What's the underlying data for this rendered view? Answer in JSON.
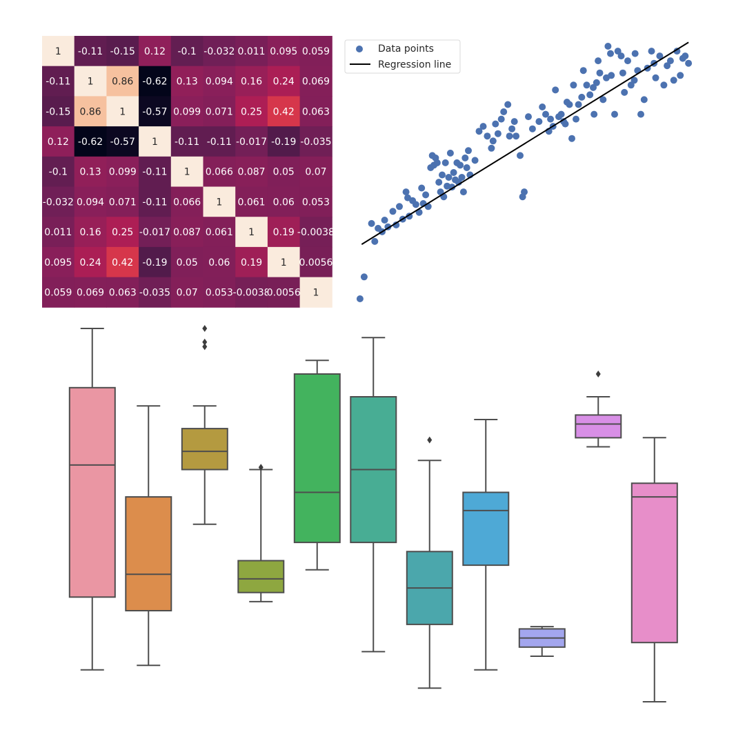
{
  "chart_data": [
    {
      "type": "heatmap",
      "title": "",
      "row_labels": [],
      "col_labels": [],
      "colormap": "rocket",
      "value_range": [
        -0.62,
        1
      ],
      "values": [
        [
          1,
          -0.11,
          -0.15,
          0.12,
          -0.1,
          -0.032,
          0.011,
          0.095,
          0.059
        ],
        [
          -0.11,
          1,
          0.86,
          -0.62,
          0.13,
          0.094,
          0.16,
          0.24,
          0.069
        ],
        [
          -0.15,
          0.86,
          1,
          -0.57,
          0.099,
          0.071,
          0.25,
          0.42,
          0.063
        ],
        [
          0.12,
          -0.62,
          -0.57,
          1,
          -0.11,
          -0.11,
          -0.017,
          -0.19,
          -0.035
        ],
        [
          -0.1,
          0.13,
          0.099,
          -0.11,
          1,
          0.066,
          0.087,
          0.05,
          0.07
        ],
        [
          -0.032,
          0.094,
          0.071,
          -0.11,
          0.066,
          1,
          0.061,
          0.06,
          0.053
        ],
        [
          0.011,
          0.16,
          0.25,
          -0.017,
          0.087,
          0.061,
          1,
          0.19,
          -0.0038
        ],
        [
          0.095,
          0.24,
          0.42,
          -0.19,
          0.05,
          0.06,
          0.19,
          1,
          0.0056
        ],
        [
          0.059,
          0.069,
          0.063,
          -0.035,
          0.07,
          0.053,
          -0.0038,
          0.0056,
          1
        ]
      ]
    },
    {
      "type": "scatter",
      "title": "",
      "xlabel": "",
      "ylabel": "",
      "axes_visible": false,
      "grid": false,
      "xlim": [
        -2.1,
        2.1
      ],
      "ylim": [
        -2.6,
        2.8
      ],
      "legend_position": "top-left",
      "point_color": "#4c72b0",
      "line_color": "#000000",
      "series": [
        {
          "name": "Data points",
          "kind": "points",
          "points": [
            [
              -2.0,
              -2.5
            ],
            [
              -1.95,
              -2.05
            ],
            [
              -1.86,
              -0.95
            ],
            [
              -1.82,
              -1.32
            ],
            [
              -1.78,
              -1.05
            ],
            [
              -1.73,
              -1.12
            ],
            [
              -1.7,
              -0.88
            ],
            [
              -1.66,
              -1.02
            ],
            [
              -1.6,
              -0.7
            ],
            [
              -1.56,
              -0.98
            ],
            [
              -1.52,
              -0.6
            ],
            [
              -1.48,
              -0.86
            ],
            [
              -1.44,
              -0.3
            ],
            [
              -1.42,
              -0.42
            ],
            [
              -1.4,
              -0.8
            ],
            [
              -1.36,
              -0.48
            ],
            [
              -1.32,
              -0.56
            ],
            [
              -1.28,
              -0.72
            ],
            [
              -1.25,
              -0.22
            ],
            [
              -1.23,
              -0.54
            ],
            [
              -1.2,
              -0.36
            ],
            [
              -1.17,
              -0.6
            ],
            [
              -1.14,
              0.2
            ],
            [
              -1.12,
              0.45
            ],
            [
              -1.1,
              0.25
            ],
            [
              -1.08,
              0.4
            ],
            [
              -1.06,
              0.3
            ],
            [
              -1.04,
              -0.1
            ],
            [
              -1.02,
              -0.3
            ],
            [
              -1.0,
              0.05
            ],
            [
              -0.98,
              -0.4
            ],
            [
              -0.96,
              0.3
            ],
            [
              -0.94,
              -0.18
            ],
            [
              -0.92,
              0.0
            ],
            [
              -0.9,
              0.5
            ],
            [
              -0.88,
              -0.2
            ],
            [
              -0.86,
              0.1
            ],
            [
              -0.84,
              -0.05
            ],
            [
              -0.82,
              0.3
            ],
            [
              -0.8,
              -0.1
            ],
            [
              -0.78,
              0.25
            ],
            [
              -0.76,
              0.0
            ],
            [
              -0.74,
              -0.3
            ],
            [
              -0.72,
              0.4
            ],
            [
              -0.7,
              0.2
            ],
            [
              -0.68,
              0.55
            ],
            [
              -0.66,
              0.05
            ],
            [
              -0.6,
              0.35
            ],
            [
              -0.55,
              0.95
            ],
            [
              -0.5,
              1.05
            ],
            [
              -0.45,
              0.85
            ],
            [
              -0.4,
              0.6
            ],
            [
              -0.38,
              0.75
            ],
            [
              -0.35,
              1.1
            ],
            [
              -0.32,
              0.9
            ],
            [
              -0.28,
              1.2
            ],
            [
              -0.25,
              1.35
            ],
            [
              -0.2,
              1.5
            ],
            [
              -0.18,
              0.85
            ],
            [
              -0.15,
              1.0
            ],
            [
              -0.12,
              1.15
            ],
            [
              -0.1,
              0.85
            ],
            [
              -0.05,
              0.45
            ],
            [
              -0.02,
              -0.4
            ],
            [
              0.0,
              -0.3
            ],
            [
              0.05,
              1.25
            ],
            [
              0.1,
              1.0
            ],
            [
              0.18,
              1.15
            ],
            [
              0.22,
              1.45
            ],
            [
              0.26,
              1.3
            ],
            [
              0.3,
              0.95
            ],
            [
              0.32,
              1.2
            ],
            [
              0.35,
              1.05
            ],
            [
              0.38,
              1.8
            ],
            [
              0.42,
              1.25
            ],
            [
              0.45,
              1.3
            ],
            [
              0.48,
              1.15
            ],
            [
              0.5,
              1.1
            ],
            [
              0.52,
              1.55
            ],
            [
              0.55,
              1.5
            ],
            [
              0.6,
              1.9
            ],
            [
              0.63,
              1.2
            ],
            [
              0.66,
              1.5
            ],
            [
              0.7,
              1.65
            ],
            [
              0.72,
              2.2
            ],
            [
              0.76,
              1.9
            ],
            [
              0.8,
              1.7
            ],
            [
              0.84,
              1.85
            ],
            [
              0.88,
              1.95
            ],
            [
              0.92,
              2.15
            ],
            [
              0.96,
              1.6
            ],
            [
              1.0,
              2.05
            ],
            [
              1.02,
              2.7
            ],
            [
              1.06,
              2.1
            ],
            [
              1.1,
              1.3
            ],
            [
              1.14,
              2.6
            ],
            [
              1.18,
              2.5
            ],
            [
              1.22,
              1.75
            ],
            [
              1.26,
              2.4
            ],
            [
              1.3,
              1.9
            ],
            [
              1.34,
              2.0
            ],
            [
              1.38,
              2.2
            ],
            [
              1.42,
              1.3
            ],
            [
              1.46,
              1.6
            ],
            [
              1.5,
              2.25
            ],
            [
              1.55,
              2.6
            ],
            [
              1.6,
              2.05
            ],
            [
              1.65,
              2.5
            ],
            [
              1.7,
              1.9
            ],
            [
              1.74,
              2.3
            ],
            [
              1.78,
              2.4
            ],
            [
              1.82,
              2.0
            ],
            [
              1.86,
              2.6
            ],
            [
              1.9,
              2.1
            ],
            [
              1.93,
              2.45
            ],
            [
              1.96,
              2.5
            ],
            [
              2.0,
              2.35
            ],
            [
              1.58,
              2.35
            ],
            [
              0.9,
              2.4
            ],
            [
              0.58,
              0.8
            ],
            [
              0.85,
              1.3
            ],
            [
              1.05,
              2.55
            ],
            [
              1.2,
              2.15
            ],
            [
              1.35,
              2.55
            ]
          ]
        },
        {
          "name": "Regression line",
          "kind": "line",
          "points": [
            [
              -1.98,
              -1.38
            ],
            [
              2.0,
              2.78
            ]
          ]
        }
      ]
    },
    {
      "type": "box",
      "title": "",
      "xlabel": "",
      "ylabel": "",
      "axes_visible": false,
      "grid": false,
      "ylim": [
        0,
        100
      ],
      "boxes": [
        {
          "color": "#ea96a3",
          "whisker_low": 14,
          "q1": 30,
          "median": 59,
          "q3": 76,
          "whisker_high": 89,
          "outliers": []
        },
        {
          "color": "#dc8d4c",
          "whisker_low": 15,
          "q1": 27,
          "median": 35,
          "q3": 52,
          "whisker_high": 72,
          "outliers": []
        },
        {
          "color": "#b49a40",
          "whisker_low": 46,
          "q1": 58,
          "median": 62,
          "q3": 67,
          "whisker_high": 72,
          "outliers": [
            89,
            86,
            85
          ]
        },
        {
          "color": "#8ea740",
          "whisker_low": 29,
          "q1": 31,
          "median": 34,
          "q3": 38,
          "whisker_high": 58,
          "outliers": [
            58.5
          ]
        },
        {
          "color": "#43b35e",
          "whisker_low": 36,
          "q1": 42,
          "median": 53,
          "q3": 79,
          "whisker_high": 82,
          "outliers": []
        },
        {
          "color": "#48ad94",
          "whisker_low": 18,
          "q1": 42,
          "median": 58,
          "q3": 74,
          "whisker_high": 87,
          "outliers": []
        },
        {
          "color": "#4ba7ac",
          "whisker_low": 10,
          "q1": 24,
          "median": 32,
          "q3": 40,
          "whisker_high": 60,
          "outliers": [
            64.5
          ]
        },
        {
          "color": "#4ea9d6",
          "whisker_low": 14,
          "q1": 37,
          "median": 49,
          "q3": 53,
          "whisker_high": 69,
          "outliers": []
        },
        {
          "color": "#a3a6ee",
          "whisker_low": 17,
          "q1": 19,
          "median": 21,
          "q3": 23,
          "whisker_high": 23.5,
          "outliers": []
        },
        {
          "color": "#d88fe6",
          "whisker_low": 63,
          "q1": 65,
          "median": 68,
          "q3": 70,
          "whisker_high": 74,
          "outliers": [
            79
          ]
        },
        {
          "color": "#e78ec9",
          "whisker_low": 7,
          "q1": 20,
          "median": 52,
          "q3": 55,
          "whisker_high": 65,
          "outliers": []
        }
      ]
    }
  ]
}
